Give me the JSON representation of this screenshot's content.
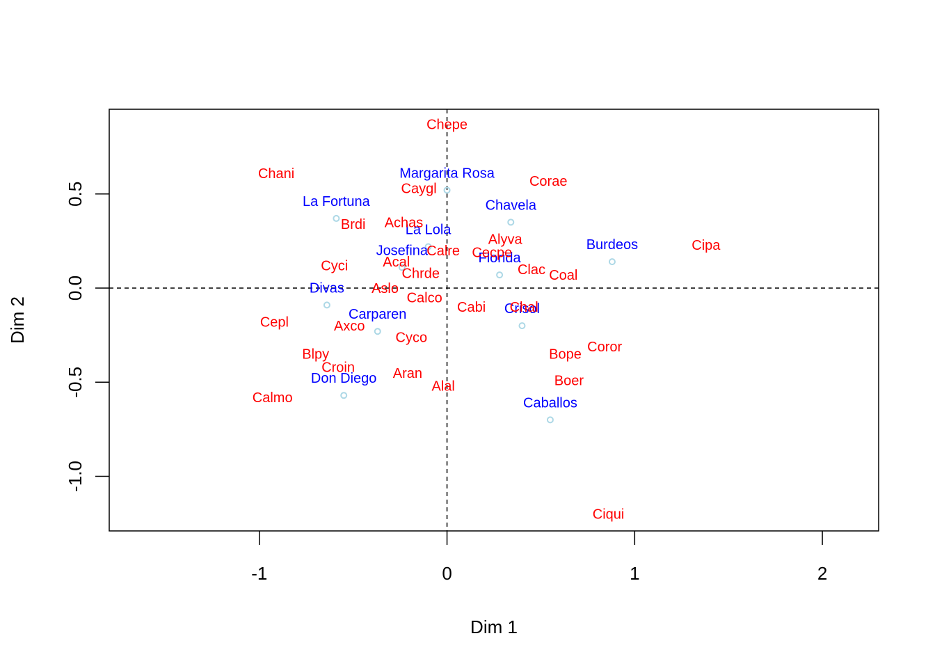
{
  "chart_data": {
    "type": "scatter",
    "title": "",
    "xlabel": "Dim 1",
    "ylabel": "Dim 2",
    "xlim": [
      -1.8,
      2.3
    ],
    "ylim": [
      -1.29,
      0.95
    ],
    "xticks": [
      -1,
      0,
      1,
      2
    ],
    "xtick_labels": [
      "-1",
      "0",
      "1",
      "2"
    ],
    "yticks": [
      -1.0,
      -0.5,
      0.0,
      0.5
    ],
    "ytick_labels": [
      "-1.0",
      "-0.5",
      "0.0",
      "0.5"
    ],
    "grid": false,
    "reference_lines": {
      "x": 0,
      "y": 0,
      "style": "dashed"
    },
    "colors": {
      "row_labels": "#0000ff",
      "col_labels": "#ff0000",
      "points": "#add8e6"
    },
    "series": [
      {
        "role": "points",
        "points": [
          {
            "label": "Margarita Rosa",
            "x": 0.0,
            "y": 0.52
          },
          {
            "label": "La Fortuna",
            "x": -0.59,
            "y": 0.37
          },
          {
            "label": "Chavela",
            "x": 0.34,
            "y": 0.35
          },
          {
            "label": "La Lola",
            "x": -0.1,
            "y": 0.22
          },
          {
            "label": "Josefina",
            "x": -0.24,
            "y": 0.11
          },
          {
            "label": "Burdeos",
            "x": 0.88,
            "y": 0.14
          },
          {
            "label": "Florida",
            "x": 0.28,
            "y": 0.07
          },
          {
            "label": "Divas",
            "x": -0.64,
            "y": -0.09
          },
          {
            "label": "Crisol",
            "x": 0.4,
            "y": -0.2
          },
          {
            "label": "Carparen",
            "x": -0.37,
            "y": -0.23
          },
          {
            "label": "Don Diego",
            "x": -0.55,
            "y": -0.57
          },
          {
            "label": "Caballos",
            "x": 0.55,
            "y": -0.7
          }
        ]
      },
      {
        "role": "variables",
        "points": [
          {
            "label": "Chepe",
            "x": 0.0,
            "y": 0.87
          },
          {
            "label": "Chani",
            "x": -0.91,
            "y": 0.61
          },
          {
            "label": "Corae",
            "x": 0.54,
            "y": 0.57
          },
          {
            "label": "Caygl",
            "x": -0.15,
            "y": 0.53
          },
          {
            "label": "Brdi",
            "x": -0.5,
            "y": 0.34
          },
          {
            "label": "Achas",
            "x": -0.23,
            "y": 0.35
          },
          {
            "label": "Alyva",
            "x": 0.31,
            "y": 0.26
          },
          {
            "label": "Cipa",
            "x": 1.38,
            "y": 0.23
          },
          {
            "label": "Calre",
            "x": -0.02,
            "y": 0.2
          },
          {
            "label": "Cecpe",
            "x": 0.24,
            "y": 0.19
          },
          {
            "label": "Acal",
            "x": -0.27,
            "y": 0.14
          },
          {
            "label": "Cyci",
            "x": -0.6,
            "y": 0.12
          },
          {
            "label": "Clac",
            "x": 0.45,
            "y": 0.1
          },
          {
            "label": "Coal",
            "x": 0.62,
            "y": 0.07
          },
          {
            "label": "Chrde",
            "x": -0.14,
            "y": 0.08
          },
          {
            "label": "Aslo",
            "x": -0.33,
            "y": 0.0
          },
          {
            "label": "Calco",
            "x": -0.12,
            "y": -0.05
          },
          {
            "label": "Cabi",
            "x": 0.13,
            "y": -0.1
          },
          {
            "label": "Chal",
            "x": 0.41,
            "y": -0.1
          },
          {
            "label": "Cepl",
            "x": -0.92,
            "y": -0.18
          },
          {
            "label": "Axco",
            "x": -0.52,
            "y": -0.2
          },
          {
            "label": "Cyco",
            "x": -0.19,
            "y": -0.26
          },
          {
            "label": "Coror",
            "x": 0.84,
            "y": -0.31
          },
          {
            "label": "Bope",
            "x": 0.63,
            "y": -0.35
          },
          {
            "label": "Blpy",
            "x": -0.7,
            "y": -0.35
          },
          {
            "label": "Croin",
            "x": -0.58,
            "y": -0.42
          },
          {
            "label": "Aran",
            "x": -0.21,
            "y": -0.45
          },
          {
            "label": "Boer",
            "x": 0.65,
            "y": -0.49
          },
          {
            "label": "Alal",
            "x": -0.02,
            "y": -0.52
          },
          {
            "label": "Calmo",
            "x": -0.93,
            "y": -0.58
          },
          {
            "label": "Ciqui",
            "x": 0.86,
            "y": -1.2
          }
        ]
      }
    ]
  }
}
